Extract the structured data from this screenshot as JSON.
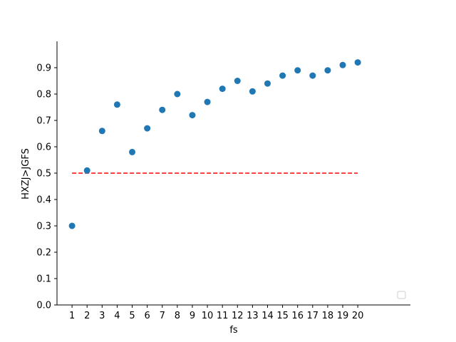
{
  "chart_data": {
    "type": "scatter",
    "title": "",
    "xlabel": "fs",
    "ylabel": "HXZJ>JGFS",
    "x": [
      1,
      2,
      3,
      4,
      5,
      6,
      7,
      8,
      9,
      10,
      11,
      12,
      13,
      14,
      15,
      16,
      17,
      18,
      19,
      20
    ],
    "y": [
      0.3,
      0.51,
      0.66,
      0.76,
      0.58,
      0.67,
      0.74,
      0.8,
      0.72,
      0.77,
      0.82,
      0.85,
      0.81,
      0.84,
      0.87,
      0.89,
      0.87,
      0.89,
      0.91,
      0.92
    ],
    "xlim": [
      0,
      23.5
    ],
    "ylim": [
      0.0,
      1.0
    ],
    "xticks": [
      "1",
      "2",
      "3",
      "4",
      "5",
      "6",
      "7",
      "8",
      "9",
      "10",
      "11",
      "12",
      "13",
      "14",
      "15",
      "16",
      "17",
      "18",
      "19",
      "20"
    ],
    "yticks": [
      "0.0",
      "0.1",
      "0.2",
      "0.3",
      "0.4",
      "0.5",
      "0.6",
      "0.7",
      "0.8",
      "0.9"
    ],
    "reference_line": {
      "y": 0.5,
      "x_from": 1,
      "x_to": 20,
      "color": "#ff0000",
      "style": "dashed"
    },
    "marker_color": "#1f77b4",
    "grid": false,
    "legend": {
      "placement": "lower-right",
      "entries": []
    }
  }
}
